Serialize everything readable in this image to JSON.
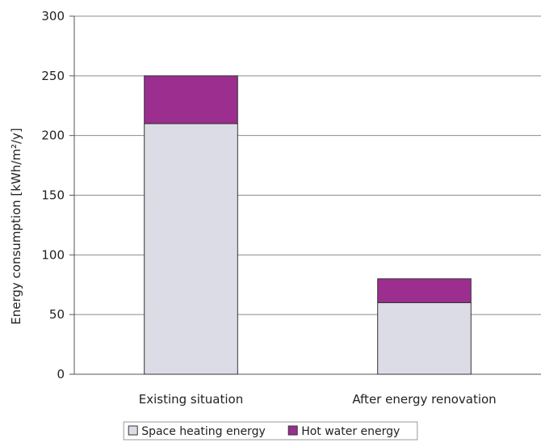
{
  "chart_data": {
    "type": "bar",
    "stacked": true,
    "categories": [
      "Existing situation",
      "After energy renovation"
    ],
    "series": [
      {
        "name": "Space heating energy",
        "values": [
          210,
          60
        ],
        "color": "#dcdce6"
      },
      {
        "name": "Hot water energy",
        "values": [
          40,
          20
        ],
        "color": "#9b2e8e"
      }
    ],
    "title": "",
    "xlabel": "",
    "ylabel": "Energy consumption [kWh/m²/y]",
    "ylim": [
      0,
      300
    ],
    "yticks": [
      0,
      50,
      100,
      150,
      200,
      250,
      300
    ],
    "grid": true,
    "legend_position": "bottom"
  }
}
